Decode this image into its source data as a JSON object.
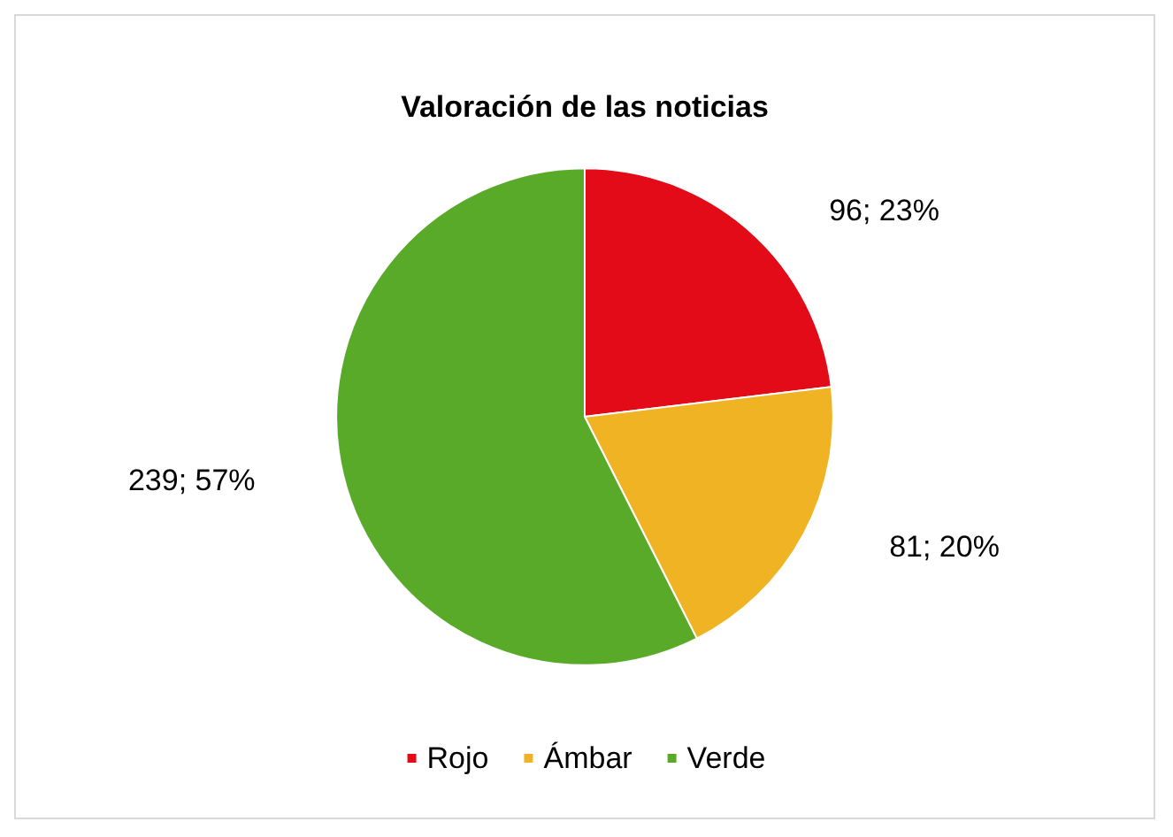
{
  "chart_data": {
    "type": "pie",
    "title": "Valoración de las noticias",
    "categories": [
      "Rojo",
      "Ámbar",
      "Verde"
    ],
    "values": [
      96,
      81,
      239
    ],
    "colors": [
      "#e30b17",
      "#f0b323",
      "#5aaa2a"
    ],
    "value_labels": [
      "96; 23%",
      "81; 20%",
      "239; 57%"
    ],
    "legend": "bottom"
  }
}
